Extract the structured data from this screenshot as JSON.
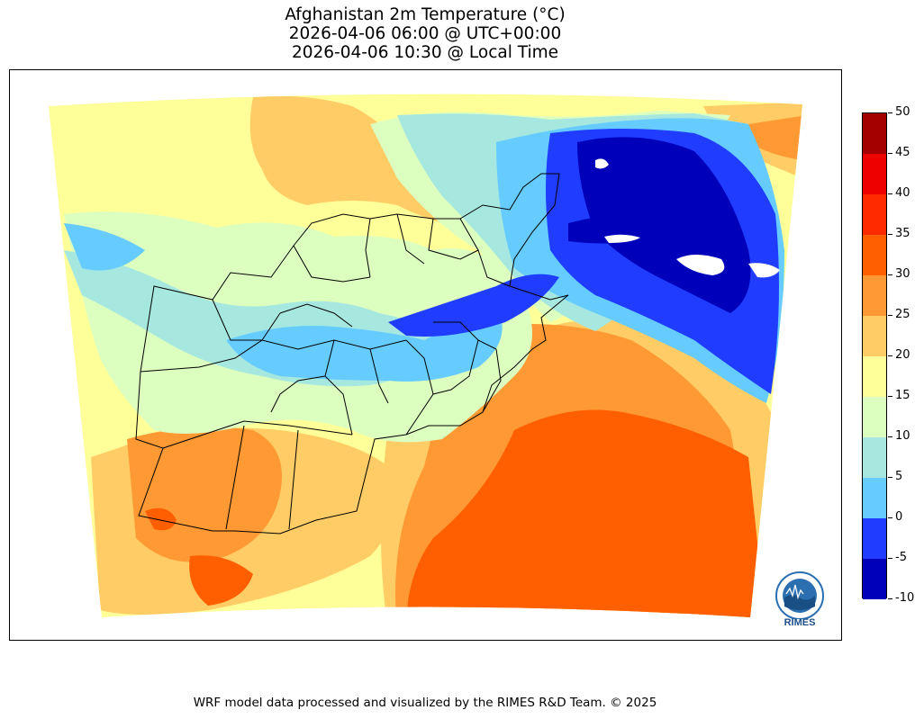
{
  "title": {
    "line1": "Afghanistan 2m Temperature (°C)",
    "line2": "2026-04-06 06:00 @ UTC+00:00",
    "line3": "2026-04-06 10:30 @ Local Time"
  },
  "colorbar": {
    "ticks": [
      "50",
      "45",
      "40",
      "35",
      "30",
      "25",
      "20",
      "15",
      "10",
      "5",
      "0",
      "-5",
      "-10"
    ],
    "colors_low_to_high": [
      "#0000bb",
      "#1f3cff",
      "#66ccff",
      "#a6e8df",
      "#dcffc0",
      "#ffff99",
      "#ffcc66",
      "#ff9933",
      "#ff5f00",
      "#ff2a00",
      "#ee0000",
      "#a40000"
    ]
  },
  "logo": {
    "text": "RIMES"
  },
  "footer": "WRF model data processed and visualized by the RIMES R&D Team. © 2025"
}
